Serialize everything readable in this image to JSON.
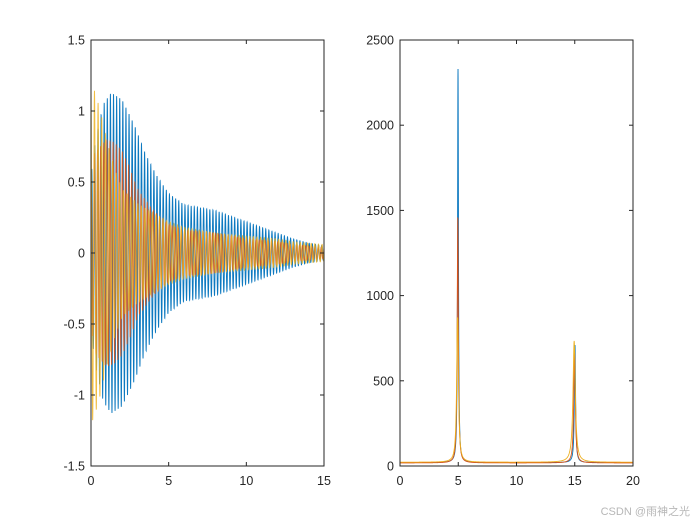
{
  "watermark": "CSDN @雨神之光",
  "colors": {
    "blue": "#0072BD",
    "orange": "#D95319",
    "yellow": "#EDB120",
    "axis": "#262626"
  },
  "chart_data": [
    {
      "type": "line",
      "title": "",
      "xlabel": "",
      "ylabel": "",
      "xlim": [
        0,
        15
      ],
      "ylim": [
        -1.5,
        1.5
      ],
      "grid": false,
      "xticks": [
        "0",
        "5",
        "10",
        "15"
      ],
      "yticks": [
        "-1.5",
        "-1",
        "-0.5",
        "0",
        "0.5",
        "1",
        "1.5"
      ],
      "series": [
        {
          "color": "#0072BD",
          "carrier_frequency_hz": 5,
          "envelope_t": [
            0,
            0.3,
            0.8,
            1.3,
            2.0,
            2.8,
            3.5,
            4.2,
            5.0,
            6.0,
            7.0,
            8.0,
            9.0,
            10.0,
            11.0,
            12.0,
            13.0,
            14.0,
            15.0
          ],
          "envelope_amplitude": [
            0.55,
            0.8,
            1.05,
            1.13,
            1.08,
            0.9,
            0.7,
            0.55,
            0.42,
            0.34,
            0.32,
            0.3,
            0.26,
            0.22,
            0.18,
            0.14,
            0.1,
            0.07,
            0.05
          ]
        },
        {
          "color": "#D95319",
          "carrier_frequency_hz": 5,
          "envelope_t": [
            0,
            0.2,
            0.6,
            1.0,
            1.5,
            2.0,
            2.5,
            3.0,
            4.0,
            5.0,
            6.0,
            7.0,
            8.0,
            10.0,
            12.0,
            13.0,
            15.0
          ],
          "envelope_amplitude": [
            0.4,
            0.7,
            0.75,
            0.8,
            0.78,
            0.72,
            0.6,
            0.45,
            0.3,
            0.2,
            0.16,
            0.15,
            0.14,
            0.1,
            0.08,
            0.06,
            0.04
          ]
        },
        {
          "color": "#EDB120",
          "carrier_frequency_hz": 4.3,
          "envelope_t": [
            0,
            0.1,
            0.3,
            0.6,
            1.0,
            1.5,
            2.0,
            2.5,
            3.0,
            4.0,
            5.0,
            6.0,
            8.0,
            10.0,
            12.0,
            13.0,
            15.0
          ],
          "envelope_amplitude": [
            1.2,
            1.18,
            1.12,
            1.0,
            0.8,
            0.6,
            0.45,
            0.4,
            0.35,
            0.28,
            0.22,
            0.18,
            0.14,
            0.12,
            0.1,
            0.08,
            0.06
          ]
        }
      ]
    },
    {
      "type": "line",
      "title": "",
      "xlabel": "",
      "ylabel": "",
      "xlim": [
        0,
        20
      ],
      "ylim": [
        0,
        2500
      ],
      "grid": false,
      "xticks": [
        "0",
        "5",
        "10",
        "15",
        "20"
      ],
      "yticks": [
        "0",
        "500",
        "1000",
        "1500",
        "2000",
        "2500"
      ],
      "series": [
        {
          "color": "#0072BD",
          "baseline": 20,
          "peaks": [
            {
              "center": 4.98,
              "height": 2310,
              "width": 0.045
            },
            {
              "center": 15.02,
              "height": 690,
              "width": 0.06
            }
          ]
        },
        {
          "color": "#D95319",
          "baseline": 18,
          "peaks": [
            {
              "center": 4.96,
              "height": 1440,
              "width": 0.06
            },
            {
              "center": 14.98,
              "height": 660,
              "width": 0.08
            }
          ]
        },
        {
          "color": "#EDB120",
          "baseline": 22,
          "peaks": [
            {
              "center": 4.94,
              "height": 850,
              "width": 0.09
            },
            {
              "center": 14.95,
              "height": 710,
              "width": 0.12
            }
          ]
        }
      ]
    }
  ]
}
